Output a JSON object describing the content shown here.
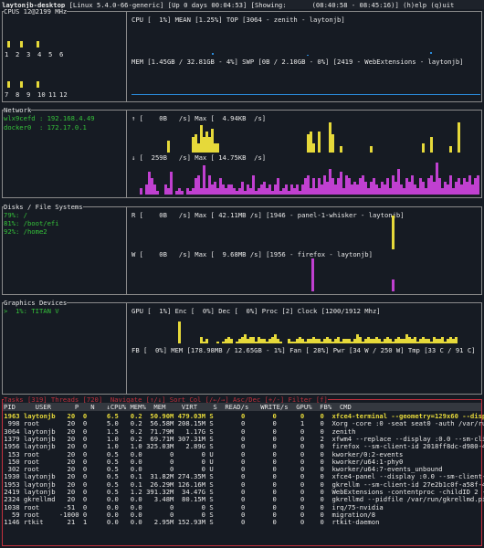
{
  "title_bar": {
    "host": "laytonjb-desktop",
    "kernel": "[Linux 5.4.0-66-generic]",
    "uptime": "[Up 0 days 00:04:53]",
    "showing_prefix": "[Showing:",
    "showing_range": "(08:40:58 - 08:45:16)]",
    "help": "(h)elp (q)uit"
  },
  "cpu_panel": {
    "title": "CPUS 12@2199 MHz",
    "row1_labels": [
      "1",
      "2",
      "3",
      "4",
      "5",
      "6"
    ],
    "row2_labels": [
      "7",
      "8",
      "9",
      "10",
      "11",
      "12"
    ],
    "summary": "CPU [  1%] MEAN [1.25%] TOP [3064 - zenith - laytonjb]",
    "mem": "MEM [1.45GB / 32.81GB - 4%] SWP [0B / 2.10GB - 0%] [2419 - WebExtensions - laytonjb]"
  },
  "network_panel": {
    "title": "Network",
    "interfaces": [
      "wlx9cefd : 192.168.4.49",
      "docker0  : 172.17.0.1"
    ],
    "up": "↑ [    0B   /s] Max [  4.94KB  /s]",
    "down": "↓ [  259B   /s] Max [ 14.75KB  /s]",
    "up_bars": [
      0,
      0,
      0,
      0,
      0,
      0,
      0,
      0,
      0,
      0,
      0,
      0,
      0,
      0,
      0.4,
      0,
      0,
      0,
      0,
      0,
      0,
      0,
      0,
      0.5,
      0.6,
      0.3,
      0.9,
      0.5,
      0.7,
      0.5,
      0.8,
      0.3,
      0.3,
      0,
      0,
      0,
      0,
      0,
      0,
      0,
      0,
      0,
      0,
      0,
      0,
      0,
      0,
      0,
      0,
      0,
      0,
      0,
      0,
      0,
      0,
      0,
      0,
      0,
      0,
      0,
      0,
      0,
      0,
      0,
      0,
      0.6,
      0.7,
      0.3,
      0,
      0.7,
      0,
      0,
      0,
      1.0,
      0.6,
      0,
      0,
      0.2,
      0,
      0,
      0,
      0,
      0,
      0,
      0,
      0,
      0,
      0,
      0.2,
      0,
      0,
      0,
      0,
      0,
      0,
      0,
      0,
      0,
      0,
      0,
      0,
      0,
      0,
      0,
      0,
      0,
      0,
      0.3,
      0,
      0,
      0.5,
      0,
      0,
      0,
      0,
      0,
      0,
      0.2,
      0,
      0,
      1.0,
      0,
      0,
      0
    ],
    "down_bars": [
      0,
      0,
      0,
      0,
      0.2,
      0,
      0.3,
      0.7,
      0.5,
      0.3,
      0.1,
      0,
      0,
      0.3,
      0.2,
      0.7,
      0,
      0.1,
      0.2,
      0.1,
      0,
      0.2,
      0.1,
      0.2,
      0.5,
      0.6,
      0.2,
      0.9,
      0.2,
      0.6,
      0.3,
      0.4,
      0.2,
      0.5,
      0.3,
      0.2,
      0.3,
      0.3,
      0.2,
      0.1,
      0.2,
      0.4,
      0.1,
      0.3,
      0.2,
      0.6,
      0.1,
      0.2,
      0.3,
      0.4,
      0.2,
      0.3,
      0.1,
      0.3,
      0.5,
      0.1,
      0.2,
      0.3,
      0.1,
      0.3,
      0.2,
      0.3,
      0.1,
      0.3,
      0.5,
      0.6,
      0.2,
      0.5,
      0.2,
      0.5,
      0.3,
      0.6,
      0.4,
      0.8,
      0.5,
      0.3,
      0.5,
      0.7,
      0.2,
      0.6,
      0.5,
      0.3,
      0.4,
      0.3,
      0.5,
      0.6,
      0.4,
      0.2,
      0.4,
      0.5,
      0.3,
      0.2,
      0.4,
      0.3,
      0.5,
      0.2,
      0.6,
      0.4,
      0.8,
      0.3,
      0.2,
      0.5,
      0.4,
      0.6,
      0.3,
      0.2,
      0.5,
      0.4,
      0.2,
      0.5,
      0.6,
      0.4,
      1.0,
      0.5,
      0.2,
      0.4,
      0.3,
      0.6,
      0.2,
      0.4,
      0.5,
      0.3,
      0.5,
      0.4,
      0.6,
      0.3,
      0.5,
      0.6
    ]
  },
  "disk_panel": {
    "title": "Disks / File Systems",
    "filesystems": [
      "79%: /",
      "81%: /boot/efi",
      "92%: /home2"
    ],
    "read": "R [    0B   /s] Max [ 42.11MB /s] [1946 - panel-1-whisker - laytonjb]",
    "write": "W [    0B   /s] Max [  9.68MB /s] [1956 - firefox - laytonjb]"
  },
  "gpu_panel": {
    "title": "Graphics Devices",
    "device": ">  1%: TITAN V",
    "line1": "GPU [  1%] Enc [  0%] Dec [  0%] Proc [2] Clock [1200/1912 Mhz]",
    "line2": "FB [  0%] MEM [178.98MB / 12.65GB - 1%] Fan [ 28%] Pwr [34 W / 250 W] Tmp [33 C / 91 C]",
    "bars": [
      0,
      0,
      0,
      0,
      0,
      0,
      0,
      0,
      0,
      0,
      0,
      0,
      0,
      0,
      0,
      0,
      0,
      0,
      1.0,
      0,
      0,
      0,
      0,
      0,
      0,
      0,
      0.3,
      0.1,
      0.2,
      0,
      0,
      0,
      0.1,
      0,
      0.1,
      0.2,
      0.3,
      0.2,
      0,
      0.1,
      0.2,
      0.3,
      0.4,
      0.2,
      0.3,
      0.3,
      0.1,
      0.3,
      0.2,
      0.2,
      0.1,
      0.2,
      0.3,
      0.4,
      0.2,
      0.1,
      0,
      0,
      0.2,
      0.1,
      0.1,
      0.2,
      0.3,
      0.2,
      0.1,
      0.2,
      0.2,
      0.3,
      0.2,
      0.2,
      0.1,
      0.2,
      0.3,
      0.2,
      0.1,
      0.2,
      0.3,
      0.1,
      0.2,
      0.2,
      0.2,
      0.1,
      0.2,
      0.4,
      0.3,
      0.1,
      0.2,
      0.3,
      0.2,
      0.2,
      0.3,
      0.2,
      0.1,
      0.2,
      0.3,
      0.2,
      0.1,
      0.2,
      0.3,
      0.2,
      0.2,
      0.4,
      0.3,
      0.2,
      0.3,
      0.1,
      0.2,
      0.3,
      0.2,
      0.2,
      0.1,
      0.3,
      0.2,
      0.2,
      0.3,
      0.1,
      0.2,
      0.3,
      0.2,
      0.3
    ]
  },
  "process_table": {
    "summary": "Tasks [319] Threads [720]  Navigate [↑/↓] Sort Col [/←/→] Asc/Dec [+/-] Filter [f]",
    "header": "PID     USER      P   N   ↓CPU% MEM%  MEM    VIRT    S  READ/s   WRITE/s  GPU%  FB%  CMD",
    "rows": [
      "    1963 laytonjb   20  0     6.5   0.2  50.90M 479.03M S       0       0      0    0  xfce4-terminal --geometry=129x60 --displa",
      "     998 root       20  0     5.0   0.2  56.58M 208.15M S       0       0      1    0  Xorg -core :0 -seat seat0 -auth /var/run/",
      "    3064 laytonjb   20  0     1.5   0.2  71.79M   1.17G S       0       0      0    0  zenith",
      "    1379 laytonjb   20  0     1.0   0.2  69.71M 307.31M S       0       0      0    2  xfwm4 --replace --display :0.0 --sm-clien",
      "    1956 laytonjb   20  0     1.0   1.0 325.03M   2.89G S       0       0      0    0  firefox --sm-client-id 2018ff8dc-d980-4d5",
      "     153 root       20  0     0.5   0.0       0       0 U       0       0      0    0  kworker/0:2-events",
      "     150 root       20  0     0.5   0.0       0       0 U       0       0      0    0  kworker/u64:1-phy0",
      "     302 root       20  0     0.5   0.0       0       0 U       0       0      0    0  kworker/u64:7-events_unbound",
      "    1930 laytonjb   20  0     0.5   0.1  31.82M 274.35M S       0       0      0    0  xfce4-panel --display :0.0 --sm-client-id",
      "    1953 laytonjb   20  0     0.5   0.1  26.29M 126.16M S       0       0      0    0  gkrellm --sm-client-id 27e2b1c0f-a58f-457",
      "    2419 laytonjb   20  0     0.5   1.2 391.32M  34.47G S       0       0      0    0  WebExtensions -contentproc -childID 2 -is",
      "    2324 gkrellmd   20  0     0.0   0.0   3.48M  80.15M S       0       0      0    0  gkrellmd --pidfile /var/run/gkrellmd.pid",
      "    1038 root      -51  0     0.0   0.0       0       0 S       0       0      0    0  irq/75-nvidia",
      "      59 root     -1000 0     0.0   0.0       0       0 S       0       0      0    0  migration/8",
      "    1146 rtkit      21  1     0.0   0.0   2.95M 152.93M S       0       0      0    0  rtkit-daemon"
    ]
  },
  "colors": {
    "background": "#161b23",
    "yellow": "#e6d93a",
    "magenta": "#c040d0",
    "green": "#35c23a",
    "blue": "#2a8ad8",
    "red_border": "#c2303c",
    "highlight": "#e6d93a"
  }
}
